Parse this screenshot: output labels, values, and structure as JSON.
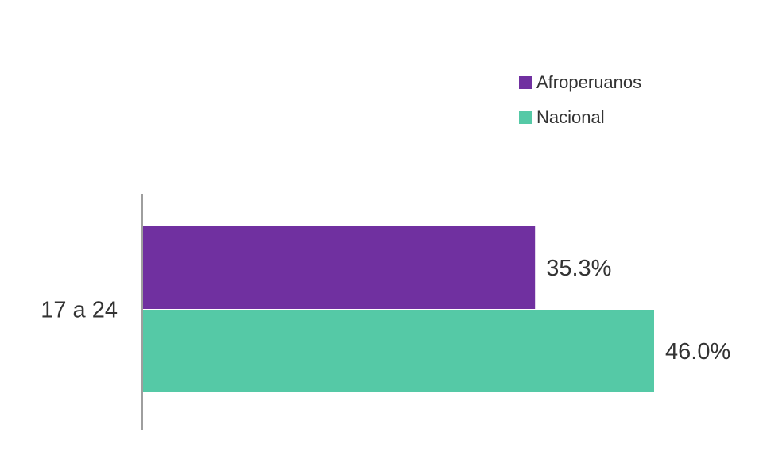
{
  "chart_data": {
    "type": "bar",
    "orientation": "horizontal",
    "categories": [
      "17 a 24"
    ],
    "series": [
      {
        "name": "Afroperuanos",
        "values": [
          35.3
        ],
        "labels": [
          "35.3%"
        ],
        "color": "#7030a0"
      },
      {
        "name": "Nacional",
        "values": [
          46.0
        ],
        "labels": [
          "46.0%"
        ],
        "color": "#55c9a6"
      }
    ],
    "xlim": [
      0,
      50
    ],
    "grid": false,
    "legend_position": "top-right"
  }
}
